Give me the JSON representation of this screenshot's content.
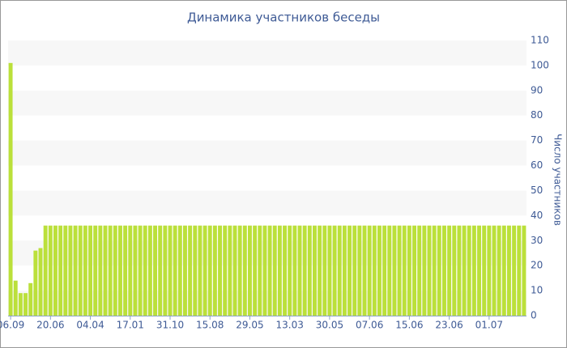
{
  "chart_data": {
    "type": "bar",
    "title": "Динамика участников беседы",
    "y_label": "Число участников",
    "y_axis_side": "right",
    "categories": [
      "06.09",
      null,
      null,
      null,
      null,
      null,
      null,
      null,
      "20.06",
      null,
      null,
      null,
      null,
      null,
      null,
      null,
      "04.04",
      null,
      null,
      null,
      null,
      null,
      null,
      null,
      "17.01",
      null,
      null,
      null,
      null,
      null,
      null,
      null,
      "31.10",
      null,
      null,
      null,
      null,
      null,
      null,
      null,
      "15.08",
      null,
      null,
      null,
      null,
      null,
      null,
      null,
      "29.05",
      null,
      null,
      null,
      null,
      null,
      null,
      null,
      "13.03",
      null,
      null,
      null,
      null,
      null,
      null,
      null,
      "30.05",
      null,
      null,
      null,
      null,
      null,
      null,
      null,
      "07.06",
      null,
      null,
      null,
      null,
      null,
      null,
      null,
      "15.06",
      null,
      null,
      null,
      null,
      null,
      null,
      null,
      "23.06",
      null,
      null,
      null,
      null,
      null,
      null,
      null,
      "01.07",
      null,
      null,
      null,
      null,
      null,
      null,
      null
    ],
    "values": [
      101,
      14,
      9,
      9,
      13,
      26,
      27,
      36,
      36,
      36,
      36,
      36,
      36,
      36,
      36,
      36,
      36,
      36,
      36,
      36,
      36,
      36,
      36,
      36,
      36,
      36,
      36,
      36,
      36,
      36,
      36,
      36,
      36,
      36,
      36,
      36,
      36,
      36,
      36,
      36,
      36,
      36,
      36,
      36,
      36,
      36,
      36,
      36,
      36,
      36,
      36,
      36,
      36,
      36,
      36,
      36,
      36,
      36,
      36,
      36,
      36,
      36,
      36,
      36,
      36,
      36,
      36,
      36,
      36,
      36,
      36,
      36,
      36,
      36,
      36,
      36,
      36,
      36,
      36,
      36,
      36,
      36,
      36,
      36,
      36,
      36,
      36,
      36,
      36,
      36,
      36,
      36,
      36,
      36,
      36,
      36,
      36,
      36,
      36,
      36,
      36,
      36,
      36,
      36
    ],
    "color": "#bbe03a",
    "ylim": [
      0,
      110
    ],
    "yticks": [
      0,
      10,
      20,
      30,
      40,
      50,
      60,
      70,
      80,
      90,
      100,
      110
    ],
    "grid": false,
    "alternate_bands": true,
    "band_color": "#f7f7f7"
  }
}
